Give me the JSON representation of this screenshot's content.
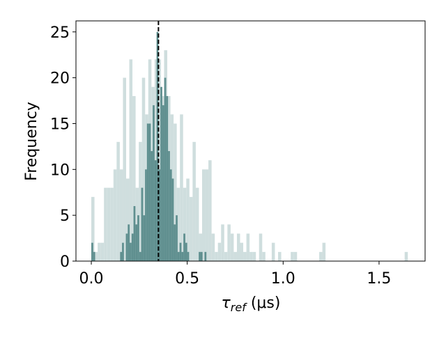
{
  "chart_data": {
    "type": "histogram",
    "xlabel": {
      "symbol": "τ",
      "subscript": "ref",
      "unit": " (μs)"
    },
    "ylabel": "Frequency",
    "xlim": [
      -0.08,
      1.74
    ],
    "ylim": [
      0,
      26.2
    ],
    "xticks": [
      {
        "value": 0,
        "label": "0.0"
      },
      0.5,
      {
        "value": 1,
        "label": "1.0"
      },
      1.5
    ],
    "yticks": [
      0,
      5,
      10,
      15,
      20,
      25
    ],
    "series": [
      {
        "color": "#cfdede",
        "bins": [
          0,
          0.0165,
          0.033,
          0.0495,
          0.066,
          0.0825,
          0.099,
          0.1155,
          0.132,
          0.1485,
          0.165,
          0.1815,
          0.198,
          0.2145,
          0.231,
          0.2475,
          0.264,
          0.2805,
          0.297,
          0.3135,
          0.33,
          0.3465,
          0.363,
          0.3795,
          0.396,
          0.4125,
          0.429,
          0.4455,
          0.462,
          0.4785,
          0.495,
          0.5115,
          0.528,
          0.5445,
          0.561,
          0.5775,
          0.594,
          0.6105,
          0.627,
          0.6435,
          0.66,
          0.6765,
          0.693,
          0.7095,
          0.726,
          0.7425,
          0.759,
          0.7755,
          0.792,
          0.8085,
          0.825,
          0.8415,
          0.858,
          0.8745,
          0.891,
          0.9075,
          0.924,
          0.9405,
          0.957,
          0.9735,
          0.99,
          1.0065,
          1.023,
          1.0395,
          1.056,
          1.0725,
          1.089,
          1.1055,
          1.122,
          1.1385,
          1.155,
          1.1715,
          1.188,
          1.2045,
          1.221,
          1.2375,
          1.254,
          1.2705,
          1.287,
          1.3035,
          1.32,
          1.3365,
          1.353,
          1.3695,
          1.386,
          1.4025,
          1.419,
          1.4355,
          1.452,
          1.4685,
          1.485,
          1.5015,
          1.518,
          1.5345,
          1.551,
          1.5675,
          1.584,
          1.6005,
          1.617,
          1.6335,
          1.65
        ],
        "values": [
          7,
          1,
          2,
          2,
          8,
          8,
          8,
          10,
          13,
          10,
          20,
          9,
          22,
          18,
          8,
          13,
          20,
          16,
          22,
          19,
          22,
          22,
          18,
          23,
          18,
          16,
          15,
          8,
          16,
          8,
          9,
          7,
          13,
          8,
          3,
          10,
          10,
          11,
          3,
          1,
          2,
          4,
          1,
          4,
          3,
          1,
          3,
          2,
          1,
          3,
          1,
          1,
          0,
          3,
          1,
          0,
          0,
          2,
          0,
          1,
          0,
          0,
          0,
          1,
          1,
          0,
          0,
          0,
          0,
          0,
          0,
          0,
          1,
          2,
          0,
          0,
          0,
          0,
          0,
          0,
          0,
          0,
          0,
          0,
          0,
          0,
          0,
          0,
          0,
          0,
          0,
          0,
          0,
          0,
          0,
          0,
          0,
          0,
          0,
          1
        ]
      },
      {
        "color": "#5f8f8f",
        "bins": [
          0,
          0.01,
          0.02,
          0.03,
          0.04,
          0.05,
          0.06,
          0.07,
          0.08,
          0.09,
          0.1,
          0.11,
          0.12,
          0.13,
          0.14,
          0.15,
          0.16,
          0.17,
          0.18,
          0.19,
          0.2,
          0.21,
          0.22,
          0.23,
          0.24,
          0.25,
          0.26,
          0.27,
          0.28,
          0.29,
          0.3,
          0.31,
          0.32,
          0.33,
          0.34,
          0.35,
          0.36,
          0.37,
          0.38,
          0.39,
          0.4,
          0.41,
          0.42,
          0.43,
          0.44,
          0.45,
          0.46,
          0.47,
          0.48,
          0.49,
          0.5,
          0.51,
          0.52,
          0.53,
          0.54,
          0.55,
          0.56,
          0.57,
          0.58,
          0.59,
          0.6
        ],
        "values": [
          2,
          1,
          0,
          0,
          0,
          0,
          0,
          0,
          0,
          0,
          0,
          0,
          0,
          0,
          0,
          1,
          2,
          0,
          3,
          4,
          2,
          3,
          6,
          4,
          5,
          1,
          8,
          5,
          10,
          15,
          15,
          12,
          17,
          11,
          25,
          10,
          19,
          17,
          20,
          18,
          12,
          10,
          9,
          4,
          5,
          1,
          2,
          1,
          3,
          2,
          1,
          0,
          0,
          0,
          0,
          0,
          1,
          1,
          0,
          1
        ]
      }
    ],
    "vlines": [
      0.35
    ],
    "vline_color": "#000000"
  }
}
